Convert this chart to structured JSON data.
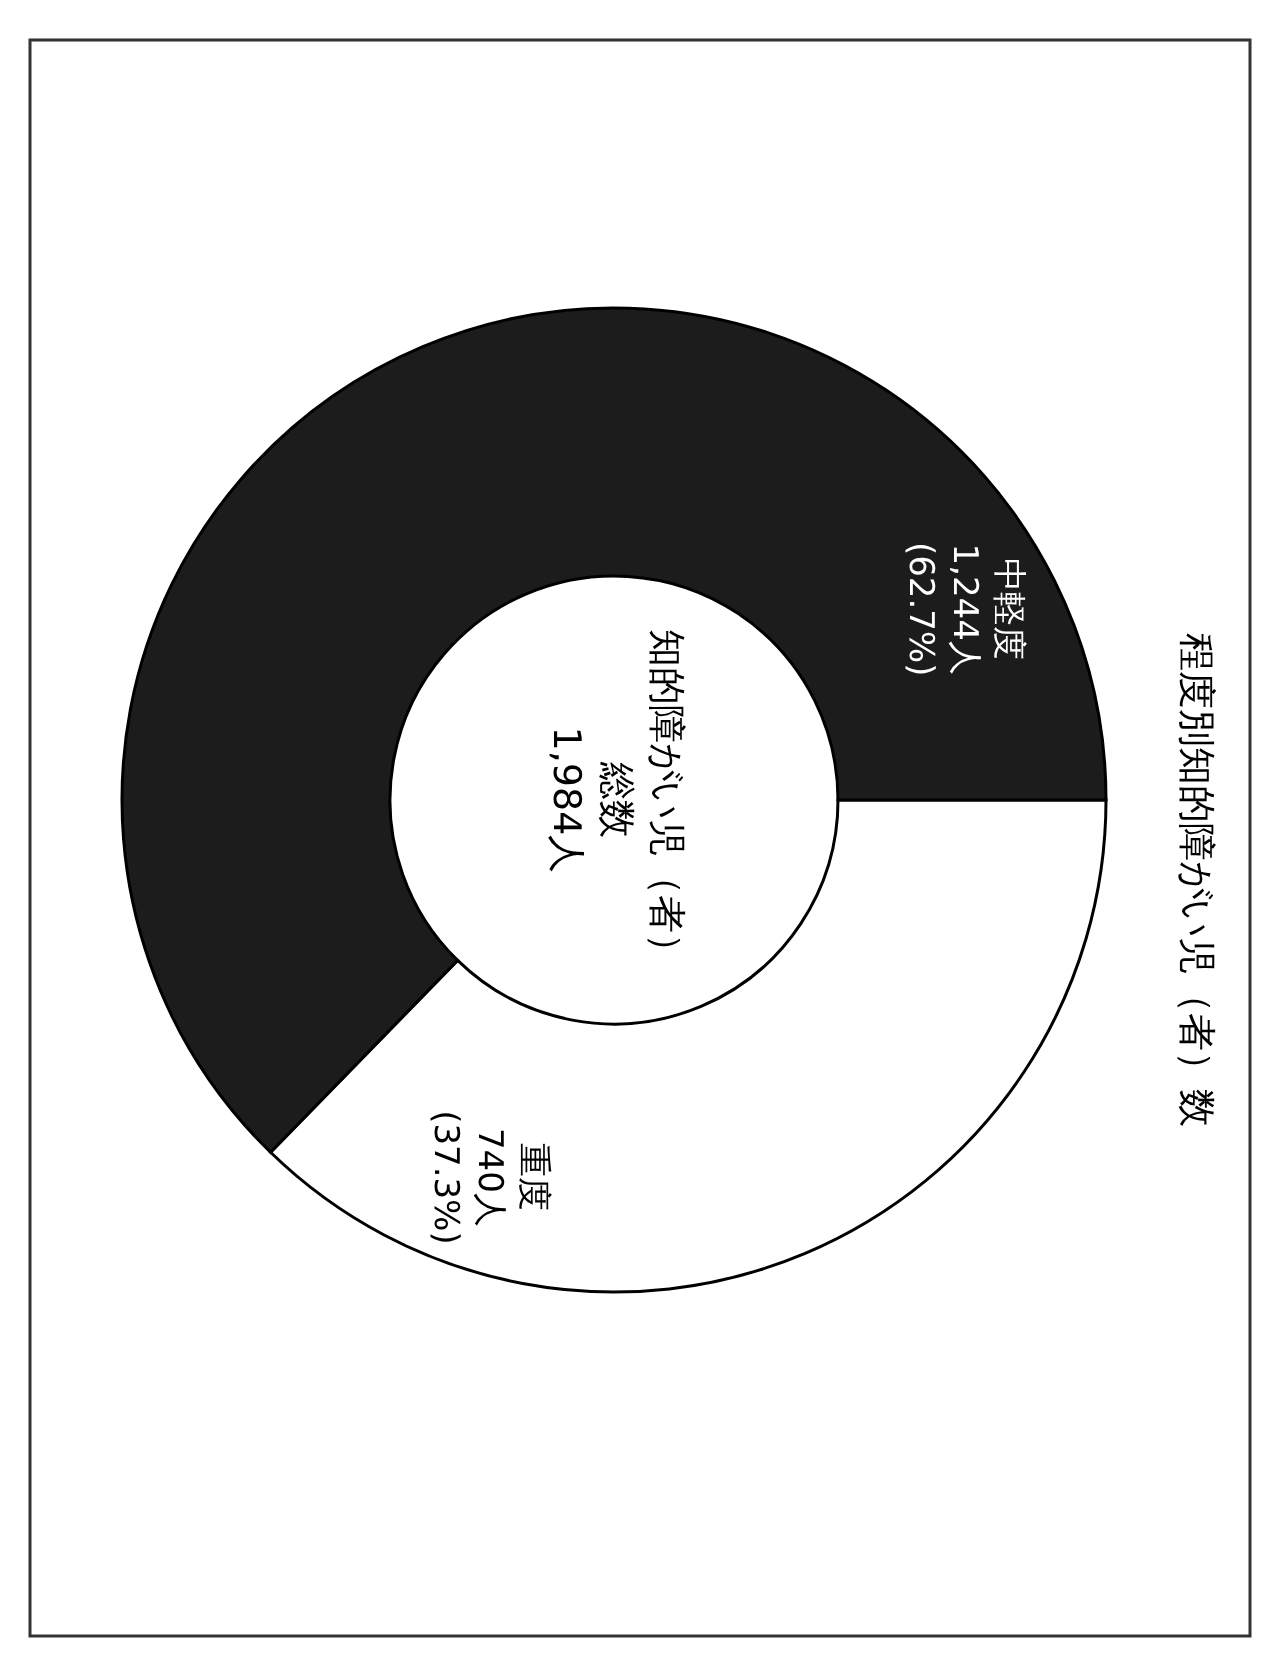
{
  "chart_data": {
    "type": "donut",
    "title": "程度別知的障がい児（者）数",
    "categories": [
      "重度",
      "中軽度"
    ],
    "values": [
      740,
      1244
    ],
    "colors": [
      "#ffffff",
      "#1c1c1c"
    ],
    "value_labels": [
      "740人 (37.3%)",
      "1,244人 (62.7%)"
    ],
    "annotations": [
      "知的障がい児（者）",
      "総数",
      "1,984人"
    ],
    "legend": false
  }
}
